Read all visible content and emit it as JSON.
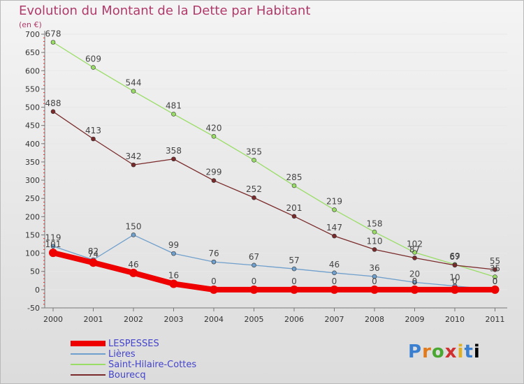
{
  "chart_data": {
    "type": "line",
    "title": "Evolution du Montant de la Dette par Habitant",
    "unit": "(en €)",
    "xlabel": "",
    "ylabel": "",
    "ylim": [
      -50,
      700
    ],
    "yticks": [
      "-50",
      "0",
      "50",
      "100",
      "150",
      "200",
      "250",
      "300",
      "350",
      "400",
      "450",
      "500",
      "550",
      "600",
      "650",
      "700"
    ],
    "categories": [
      "2000",
      "2001",
      "2002",
      "2003",
      "2004",
      "2005",
      "2006",
      "2007",
      "2008",
      "2009",
      "2010",
      "2011"
    ],
    "series": [
      {
        "name": "LESPESSES",
        "color": "#ee0000",
        "values": [
          101,
          74,
          46,
          16,
          0,
          0,
          0,
          0,
          0,
          0,
          0,
          0
        ],
        "labels": [
          "101",
          "74",
          "46",
          "16",
          "0",
          "0",
          "0",
          "0",
          "0",
          "0",
          "0",
          "0"
        ]
      },
      {
        "name": "Lières",
        "color": "#6f9fcc",
        "values": [
          119,
          82,
          150,
          99,
          76,
          67,
          57,
          46,
          36,
          20,
          10,
          0
        ],
        "labels": [
          "119",
          "82",
          "150",
          "99",
          "76",
          "67",
          "57",
          "46",
          "36",
          "20",
          "10",
          "0"
        ]
      },
      {
        "name": "Saint-Hilaire-Cottes",
        "color": "#99dd66",
        "values": [
          678,
          609,
          544,
          481,
          420,
          355,
          285,
          219,
          158,
          102,
          69,
          35
        ],
        "labels": [
          "678",
          "609",
          "544",
          "481",
          "420",
          "355",
          "285",
          "219",
          "158",
          "102",
          "69",
          "35"
        ]
      },
      {
        "name": "Bourecq",
        "color": "#7a2a2a",
        "values": [
          488,
          413,
          342,
          358,
          299,
          252,
          201,
          147,
          110,
          87,
          67,
          55
        ],
        "labels": [
          "488",
          "413",
          "342",
          "358",
          "299",
          "252",
          "201",
          "147",
          "110",
          "87",
          "67",
          "55"
        ]
      }
    ]
  },
  "logo": {
    "letters": [
      "P",
      "r",
      "o",
      "x",
      "i",
      "t",
      "i"
    ]
  }
}
